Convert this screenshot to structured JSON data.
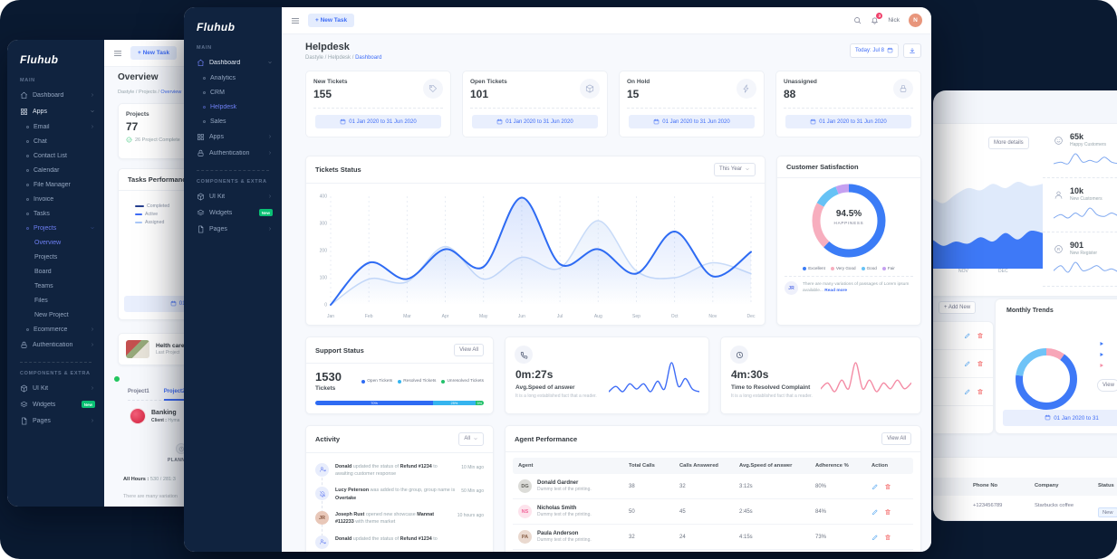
{
  "colors": {
    "accent_blue": "#3e6cf6",
    "active_indigo": "#6e7ff3",
    "navy_background": "#0a1a31",
    "sidebar_navy": "#10233f",
    "green_badge": "#0ac074",
    "chart_blue": "#2e6bf3",
    "chart_light_blue": "#c8dbf8",
    "pink_spark": "#f48ca5",
    "edit_blue": "#50a5f1",
    "delete_red": "#f46a6a"
  },
  "left_window": {
    "topbar": {
      "new_task": "+ New Task"
    },
    "sidebar": {
      "logo": "Fluhub",
      "items": [
        {
          "t": "section",
          "label": "MAIN"
        },
        {
          "t": "item",
          "icon": "home",
          "label": "Dashboard",
          "chev": "r"
        },
        {
          "t": "item",
          "icon": "grid",
          "label": "Apps",
          "chev": "d",
          "white": true
        },
        {
          "t": "sub",
          "label": "Email",
          "chev": "r"
        },
        {
          "t": "sub",
          "label": "Chat"
        },
        {
          "t": "sub",
          "label": "Contact List"
        },
        {
          "t": "sub",
          "label": "Calendar"
        },
        {
          "t": "sub",
          "label": "File Manager"
        },
        {
          "t": "sub",
          "label": "Invoice"
        },
        {
          "t": "sub",
          "label": "Tasks"
        },
        {
          "t": "sub",
          "label": "Projects",
          "chev": "d",
          "active": true
        },
        {
          "t": "sub2",
          "label": "Overview",
          "active": true
        },
        {
          "t": "sub2",
          "label": "Projects"
        },
        {
          "t": "sub2",
          "label": "Board"
        },
        {
          "t": "sub2",
          "label": "Teams"
        },
        {
          "t": "sub2",
          "label": "Files"
        },
        {
          "t": "sub2",
          "label": "New Project"
        },
        {
          "t": "sub",
          "label": "Ecommerce",
          "chev": "r"
        },
        {
          "t": "item",
          "icon": "lock",
          "label": "Authentication",
          "chev": "r"
        },
        {
          "t": "section",
          "label": "COMPONENTS & EXTRA"
        },
        {
          "t": "item",
          "icon": "box",
          "label": "UI Kit",
          "chev": "r"
        },
        {
          "t": "item",
          "icon": "layers",
          "label": "Widgets",
          "badge": "New"
        },
        {
          "t": "item",
          "icon": "file",
          "label": "Pages",
          "chev": "r"
        }
      ]
    },
    "page": {
      "title": "Overview",
      "breadcrumb": [
        {
          "label": "Dastyle"
        },
        {
          "label": "Projects"
        },
        {
          "label": "Overview",
          "active": true
        }
      ],
      "projects_card": {
        "label": "Projects",
        "value": "77",
        "note": "26 Project Complete"
      },
      "tasks_performance": {
        "title": "Tasks Performance",
        "legend": [
          {
            "label": "Completed",
            "color": "#263f8f"
          },
          {
            "label": "Active",
            "color": "#3e6cf6"
          },
          {
            "label": "Assigned",
            "color": "#a9c7f7"
          }
        ],
        "date_chip": "01 Jan 2020 to 31 Jun 2020"
      },
      "health_card": {
        "title": "Helth care",
        "subtitle": "Last Project"
      },
      "project_tabs": [
        {
          "label": "Project1"
        },
        {
          "label": "Project2",
          "active": true
        }
      ],
      "banking": {
        "title": "Banking",
        "client_label": "Client :",
        "client_value": "Hyma"
      },
      "planning_label": "PLANNING",
      "all_hours": {
        "label": "All Hours :",
        "value": "530 / 281:3"
      },
      "note": "There are many variation"
    }
  },
  "middle_window": {
    "topbar": {
      "new_task": "+ New Task",
      "user": "Nick",
      "bell_count": "3",
      "avatar_initial": "N"
    },
    "sidebar": {
      "logo": "Fluhub",
      "items": [
        {
          "t": "section",
          "label": "MAIN"
        },
        {
          "t": "item",
          "icon": "home",
          "label": "Dashboard",
          "chev": "d",
          "white": true,
          "icon_active": true
        },
        {
          "t": "sub",
          "label": "Analytics"
        },
        {
          "t": "sub",
          "label": "CRM"
        },
        {
          "t": "sub",
          "label": "Helpdesk",
          "active": true
        },
        {
          "t": "sub",
          "label": "Sales"
        },
        {
          "t": "item",
          "icon": "grid",
          "label": "Apps",
          "chev": "r"
        },
        {
          "t": "item",
          "icon": "lock",
          "label": "Authentication",
          "chev": "r"
        },
        {
          "t": "section",
          "label": "COMPONENTS & EXTRA"
        },
        {
          "t": "item",
          "icon": "box",
          "label": "UI Kit",
          "chev": "r"
        },
        {
          "t": "item",
          "icon": "layers",
          "label": "Widgets",
          "badge": "New"
        },
        {
          "t": "item",
          "icon": "file",
          "label": "Pages",
          "chev": "r"
        }
      ]
    },
    "page": {
      "title": "Helpdesk",
      "breadcrumb": [
        {
          "label": "Dastyle"
        },
        {
          "label": "Helpdesk"
        },
        {
          "label": "Dashboard",
          "active": true
        }
      ],
      "today_chip": "Today: Jul 8",
      "stats": [
        {
          "label": "New Tickets",
          "value": "155",
          "icon": "tag",
          "date": "01 Jan 2020 to 31 Jun 2020"
        },
        {
          "label": "Open Tickets",
          "value": "101",
          "icon": "cube",
          "date": "01 Jan 2020 to 31 Jun 2020"
        },
        {
          "label": "On Hold",
          "value": "15",
          "icon": "bolt",
          "date": "01 Jan 2020 to 31 Jun 2020"
        },
        {
          "label": "Unassigned",
          "value": "88",
          "icon": "lock",
          "date": "01 Jan 2020 to 31 Jun 2020"
        }
      ],
      "tickets_status": {
        "title": "Tickets Status",
        "filter": "This Year"
      },
      "csat": {
        "title": "Customer Satisfaction",
        "value": "94.5%",
        "value_label": "HAPPINESS",
        "note_initials": "JR",
        "note_text": "There are many variations of passages of Lorem ipsum available...",
        "read_more": "Read more"
      },
      "support": {
        "title": "Support Status",
        "view_all": "View All",
        "total": "1530",
        "total_label": "Tickets"
      },
      "speed": {
        "value": "0m:27s",
        "label": "Avg.Speed of answer",
        "sub": "It is a long established fact that a reader."
      },
      "resolve": {
        "value": "4m:30s",
        "label": "Time to Resolved Complaint",
        "sub": "It is a long established fact that a reader."
      },
      "activity": {
        "title": "Activity",
        "filter": "All",
        "items": [
          {
            "icon": "usersync",
            "time": "10 Min ago",
            "parts": [
              {
                "t": "Donald",
                "b": true
              },
              {
                "t": " updated the status of "
              },
              {
                "t": "Refund #1234",
                "b": true
              },
              {
                "t": " to awaiting customer response"
              }
            ]
          },
          {
            "icon": "bellslash",
            "time": "50 Min ago",
            "parts": [
              {
                "t": "Lucy Peterson",
                "b": true
              },
              {
                "t": " was added to the group, group name is "
              },
              {
                "t": "Overtake",
                "b": true
              }
            ]
          },
          {
            "avatar": {
              "text": "JR",
              "bg": "#e8c7b8",
              "fg": "#8a5a44"
            },
            "time": "10 hours ago",
            "parts": [
              {
                "t": "Joseph Rust",
                "b": true
              },
              {
                "t": " opened new showcase "
              },
              {
                "t": "Mannat #112233",
                "b": true
              },
              {
                "t": " with theme market"
              }
            ]
          },
          {
            "icon": "usersync",
            "time": "",
            "parts": [
              {
                "t": "Donald",
                "b": true
              },
              {
                "t": " updated the status of "
              },
              {
                "t": "Refund #1234",
                "b": true
              },
              {
                "t": " to"
              }
            ]
          }
        ]
      },
      "agents": {
        "title": "Agent Performance",
        "view_all": "View All",
        "columns": [
          "Agent",
          "Total Calls",
          "Calls Answered",
          "Avg.Speed of answer",
          "Adherence %",
          "Action"
        ],
        "rows": [
          {
            "name": "Donald Gardner",
            "desc": "Dummy text of the printing.",
            "avatar": {
              "text": "DG",
              "bg": "#dcdcd8",
              "fg": "#5c5c56"
            },
            "total": "38",
            "answered": "32",
            "speed": "3:12s",
            "adherence": "80%"
          },
          {
            "name": "Nicholas Smith",
            "desc": "Dummy text of the printing.",
            "avatar": {
              "text": "NS",
              "bg": "#fde3ec",
              "fg": "#f2689c"
            },
            "total": "50",
            "answered": "45",
            "speed": "2:45s",
            "adherence": "84%"
          },
          {
            "name": "Paula Anderson",
            "desc": "Dummy text of the printing.",
            "avatar": {
              "text": "PA",
              "bg": "#ead9cf",
              "fg": "#8a6148"
            },
            "total": "32",
            "answered": "24",
            "speed": "4:15s",
            "adherence": "73%"
          }
        ]
      }
    }
  },
  "right_window": {
    "more_details": "More details",
    "months": [
      "OCT",
      "NOV",
      "DEC"
    ],
    "stats": [
      {
        "icon": "smiley",
        "value": "65k",
        "label": "Happy Customers",
        "spark": "happy_spark"
      },
      {
        "icon": "user",
        "value": "10k",
        "label": "New Customers",
        "spark": "new_customers_spark"
      },
      {
        "icon": "reg",
        "value": "901",
        "label": "New Register",
        "spark": "new_register_spark"
      }
    ],
    "add_new": "+ Add New",
    "search_label": "search",
    "action_rows": 3,
    "monthly_trends": {
      "title": "Monthly Trends",
      "view": "View",
      "date_chip": "01 Jan 2020 to 31"
    },
    "table": {
      "columns": [
        "Phone No",
        "Company",
        "Status"
      ],
      "rows": [
        {
          "phone": "+123456789",
          "company": "Starbucks coffee",
          "status": "New"
        }
      ]
    }
  },
  "chart_data": [
    {
      "id": "tickets_status",
      "type": "line",
      "title": "Tickets Status",
      "categories": [
        "Jan",
        "Feb",
        "Mar",
        "Apr",
        "May",
        "Jun",
        "Jul",
        "Aug",
        "Sep",
        "Oct",
        "Nov",
        "Dec"
      ],
      "ylim": [
        0,
        400
      ],
      "yticks": [
        0,
        100,
        200,
        300,
        400
      ],
      "grid": "vertical-dashed",
      "legend": "none",
      "series": [
        {
          "name": "tickets-dark",
          "color": "#2e6bf3",
          "values": [
            0,
            155,
            95,
            205,
            140,
            395,
            150,
            205,
            115,
            270,
            105,
            195
          ]
        },
        {
          "name": "tickets-light",
          "color": "#c8dbf8",
          "values": [
            0,
            95,
            85,
            215,
            95,
            175,
            135,
            310,
            125,
            100,
            155,
            115
          ]
        }
      ]
    },
    {
      "id": "customer_satisfaction",
      "type": "pie",
      "center_value": "94.5%",
      "center_label": "HAPPINESS",
      "slices": [
        {
          "label": "Excellent",
          "pct": 62,
          "color": "#3b7cf6"
        },
        {
          "label": "Very Good",
          "pct": 21,
          "color": "#f7aebe"
        },
        {
          "label": "Good",
          "pct": 11,
          "color": "#66c2f5"
        },
        {
          "label": "Fair",
          "pct": 6,
          "color": "#c5a0f0"
        }
      ]
    },
    {
      "id": "support_status",
      "type": "bar",
      "total": 1530,
      "segments": [
        {
          "label": "Open Tickets",
          "pct": 70,
          "color": "#2e6bf3"
        },
        {
          "label": "Resolved Tickets",
          "pct": 25,
          "color": "#35b4ef"
        },
        {
          "label": "Unresolved Tickets",
          "pct": 5,
          "color": "#23c16b"
        }
      ]
    },
    {
      "id": "avg_speed_spark",
      "type": "line",
      "color": "#3e6cf6",
      "values": [
        4,
        6,
        4,
        7,
        5,
        7,
        4,
        8,
        5,
        15,
        6,
        9,
        5,
        4
      ]
    },
    {
      "id": "resolve_spark",
      "type": "line",
      "color": "#f48ca5",
      "values": [
        6,
        8,
        5,
        9,
        6,
        15,
        6,
        9,
        5,
        8,
        6,
        9,
        6,
        8
      ]
    },
    {
      "id": "happy_spark",
      "type": "line",
      "color": "#7fa8f0",
      "values": [
        1,
        2,
        1,
        7,
        2,
        3,
        2,
        5,
        2,
        1
      ]
    },
    {
      "id": "new_customers_spark",
      "type": "line",
      "color": "#7fa8f0",
      "values": [
        1,
        3,
        1,
        4,
        2,
        7,
        3,
        2,
        4,
        2
      ]
    },
    {
      "id": "new_register_spark",
      "type": "line",
      "color": "#7fa8f0",
      "values": [
        2,
        5,
        1,
        7,
        2,
        3,
        5,
        2,
        3,
        1
      ]
    },
    {
      "id": "right_area",
      "type": "area",
      "visible_categories": [
        "OCT",
        "NOV",
        "DEC"
      ],
      "series": [
        {
          "name": "area-light",
          "color": "#dce8fb",
          "values": [
            46,
            55,
            52,
            62,
            58,
            66,
            72,
            70,
            76,
            72,
            78,
            74,
            76
          ]
        },
        {
          "name": "area-dark",
          "color": "#3e79f7",
          "values": [
            30,
            26,
            20,
            24,
            18,
            22,
            20,
            26,
            22,
            30,
            24,
            32,
            30
          ]
        }
      ]
    },
    {
      "id": "monthly_trends",
      "type": "pie",
      "slices": [
        {
          "label": "",
          "pct": 10,
          "color": "#f7a6b8"
        },
        {
          "label": "",
          "pct": 67,
          "color": "#3e79f7"
        },
        {
          "label": "",
          "pct": 23,
          "color": "#6fc3f7"
        }
      ]
    }
  ]
}
